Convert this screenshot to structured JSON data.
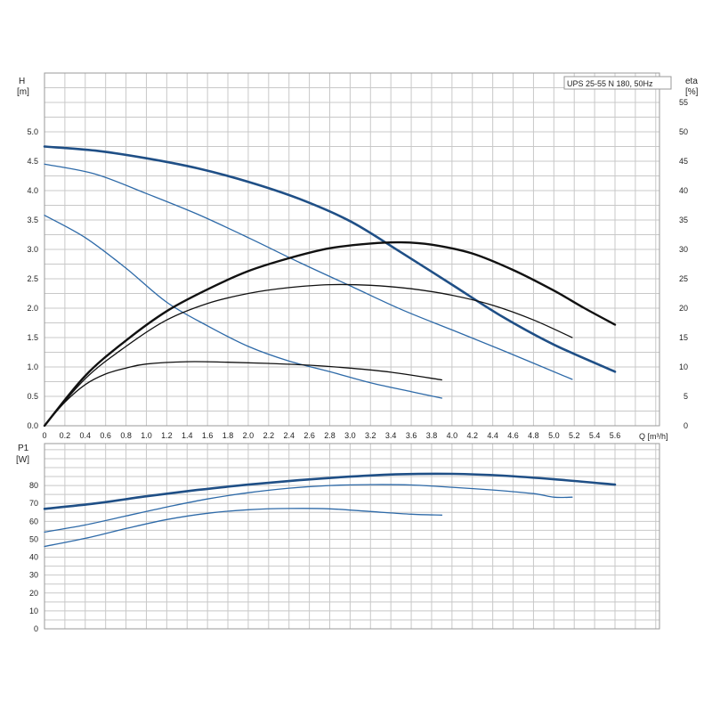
{
  "colors": {
    "blue": "#2e6aa8",
    "dark_blue": "#1f4f86",
    "black": "#111111",
    "grid": "#c8c8c8",
    "frame": "#9a9a9a"
  },
  "chart_data": [
    {
      "type": "line",
      "name": "pump-curve",
      "title": "UPS 25-55 N 180, 50Hz",
      "xlabel": "Q [m³/h]",
      "ylabel": "H",
      "ylabel_unit": "[m]",
      "y2label": "eta",
      "y2label_unit": "[%]",
      "xlim": [
        0,
        5.6
      ],
      "ylim": [
        0,
        5.5
      ],
      "y2lim": [
        0,
        55
      ],
      "x_ticks": [
        "0",
        "0.2",
        "0.4",
        "0.6",
        "0.8",
        "1.0",
        "1.2",
        "1.4",
        "1.6",
        "1.8",
        "2.0",
        "2.2",
        "2.4",
        "2.6",
        "2.8",
        "3.0",
        "3.2",
        "3.4",
        "3.6",
        "3.8",
        "4.0",
        "4.2",
        "4.4",
        "4.6",
        "4.8",
        "5.0",
        "5.2",
        "5.4",
        "5.6"
      ],
      "y_ticks": [
        "0.0",
        "0.5",
        "1.0",
        "1.5",
        "2.0",
        "2.5",
        "3.0",
        "3.5",
        "4.0",
        "4.5",
        "5.0"
      ],
      "y2_ticks": [
        "0",
        "5",
        "10",
        "15",
        "20",
        "25",
        "30",
        "35",
        "40",
        "45",
        "50",
        "55"
      ],
      "grid": true,
      "series": [
        {
          "axis": "left",
          "color": "#1f4f86",
          "width": 2.6,
          "points": [
            [
              0,
              4.75
            ],
            [
              0.5,
              4.68
            ],
            [
              1.0,
              4.55
            ],
            [
              1.5,
              4.38
            ],
            [
              2.0,
              4.15
            ],
            [
              2.5,
              3.86
            ],
            [
              3.0,
              3.48
            ],
            [
              3.5,
              2.95
            ],
            [
              4.0,
              2.4
            ],
            [
              4.5,
              1.85
            ],
            [
              5.0,
              1.38
            ],
            [
              5.6,
              0.92
            ]
          ]
        },
        {
          "axis": "left",
          "color": "#2e6aa8",
          "width": 1.3,
          "points": [
            [
              0,
              4.45
            ],
            [
              0.5,
              4.28
            ],
            [
              1.0,
              3.95
            ],
            [
              1.5,
              3.6
            ],
            [
              2.0,
              3.2
            ],
            [
              2.5,
              2.78
            ],
            [
              3.0,
              2.38
            ],
            [
              3.5,
              1.98
            ],
            [
              4.0,
              1.63
            ],
            [
              4.5,
              1.28
            ],
            [
              5.18,
              0.79
            ]
          ]
        },
        {
          "axis": "left",
          "color": "#2e6aa8",
          "width": 1.3,
          "points": [
            [
              0,
              3.58
            ],
            [
              0.4,
              3.2
            ],
            [
              0.8,
              2.68
            ],
            [
              1.2,
              2.1
            ],
            [
              1.6,
              1.7
            ],
            [
              2.0,
              1.35
            ],
            [
              2.4,
              1.1
            ],
            [
              2.8,
              0.92
            ],
            [
              3.2,
              0.73
            ],
            [
              3.6,
              0.58
            ],
            [
              3.9,
              0.47
            ]
          ]
        },
        {
          "axis": "right",
          "color": "#111111",
          "width": 2.4,
          "points": [
            [
              0,
              0
            ],
            [
              0.4,
              8.5
            ],
            [
              0.8,
              14.5
            ],
            [
              1.2,
              19.5
            ],
            [
              1.6,
              23.2
            ],
            [
              2.0,
              26.3
            ],
            [
              2.4,
              28.5
            ],
            [
              2.8,
              30.2
            ],
            [
              3.2,
              31.0
            ],
            [
              3.5,
              31.2
            ],
            [
              3.8,
              30.8
            ],
            [
              4.2,
              29.3
            ],
            [
              4.6,
              26.5
            ],
            [
              5.0,
              23.0
            ],
            [
              5.3,
              20.0
            ],
            [
              5.6,
              17.2
            ]
          ]
        },
        {
          "axis": "right",
          "color": "#111111",
          "width": 1.3,
          "points": [
            [
              0,
              0
            ],
            [
              0.4,
              8.0
            ],
            [
              0.8,
              13.5
            ],
            [
              1.2,
              18.0
            ],
            [
              1.6,
              20.8
            ],
            [
              2.0,
              22.5
            ],
            [
              2.4,
              23.5
            ],
            [
              2.8,
              24.0
            ],
            [
              3.2,
              23.9
            ],
            [
              3.6,
              23.3
            ],
            [
              4.0,
              22.2
            ],
            [
              4.4,
              20.5
            ],
            [
              4.8,
              18.0
            ],
            [
              5.18,
              15.0
            ]
          ]
        },
        {
          "axis": "right",
          "color": "#111111",
          "width": 1.3,
          "points": [
            [
              0,
              0
            ],
            [
              0.2,
              4.0
            ],
            [
              0.4,
              7.0
            ],
            [
              0.6,
              8.8
            ],
            [
              0.8,
              9.8
            ],
            [
              1.0,
              10.5
            ],
            [
              1.4,
              10.9
            ],
            [
              1.8,
              10.8
            ],
            [
              2.2,
              10.6
            ],
            [
              2.6,
              10.3
            ],
            [
              3.0,
              9.8
            ],
            [
              3.4,
              9.1
            ],
            [
              3.9,
              7.8
            ]
          ]
        }
      ]
    },
    {
      "type": "line",
      "name": "power-curve",
      "ylabel": "P1",
      "ylabel_unit": "[W]",
      "xlim": [
        0,
        5.6
      ],
      "ylim": [
        0,
        90
      ],
      "y_ticks": [
        "0",
        "10",
        "20",
        "30",
        "40",
        "50",
        "60",
        "70",
        "80"
      ],
      "grid": true,
      "series": [
        {
          "color": "#1f4f86",
          "width": 2.6,
          "points": [
            [
              0,
              67
            ],
            [
              0.5,
              70
            ],
            [
              1.0,
              74
            ],
            [
              1.5,
              77.5
            ],
            [
              2.0,
              80.5
            ],
            [
              2.5,
              83
            ],
            [
              3.0,
              85
            ],
            [
              3.5,
              86.3
            ],
            [
              4.0,
              86.5
            ],
            [
              4.5,
              85.5
            ],
            [
              5.0,
              83.5
            ],
            [
              5.6,
              80.5
            ]
          ]
        },
        {
          "color": "#2e6aa8",
          "width": 1.3,
          "points": [
            [
              0,
              54
            ],
            [
              0.4,
              58
            ],
            [
              0.8,
              63
            ],
            [
              1.2,
              68
            ],
            [
              1.6,
              72.5
            ],
            [
              2.0,
              76
            ],
            [
              2.4,
              78.5
            ],
            [
              2.8,
              80
            ],
            [
              3.2,
              80.5
            ],
            [
              3.6,
              80.3
            ],
            [
              4.0,
              79
            ],
            [
              4.4,
              77.5
            ],
            [
              4.8,
              75.5
            ],
            [
              5.0,
              73.5
            ],
            [
              5.18,
              73.5
            ]
          ]
        },
        {
          "color": "#2e6aa8",
          "width": 1.3,
          "points": [
            [
              0,
              46
            ],
            [
              0.4,
              50.5
            ],
            [
              0.8,
              56
            ],
            [
              1.2,
              61
            ],
            [
              1.6,
              64.5
            ],
            [
              2.0,
              66.5
            ],
            [
              2.4,
              67.2
            ],
            [
              2.8,
              67
            ],
            [
              3.2,
              65.5
            ],
            [
              3.6,
              64
            ],
            [
              3.9,
              63.5
            ]
          ]
        }
      ]
    }
  ]
}
